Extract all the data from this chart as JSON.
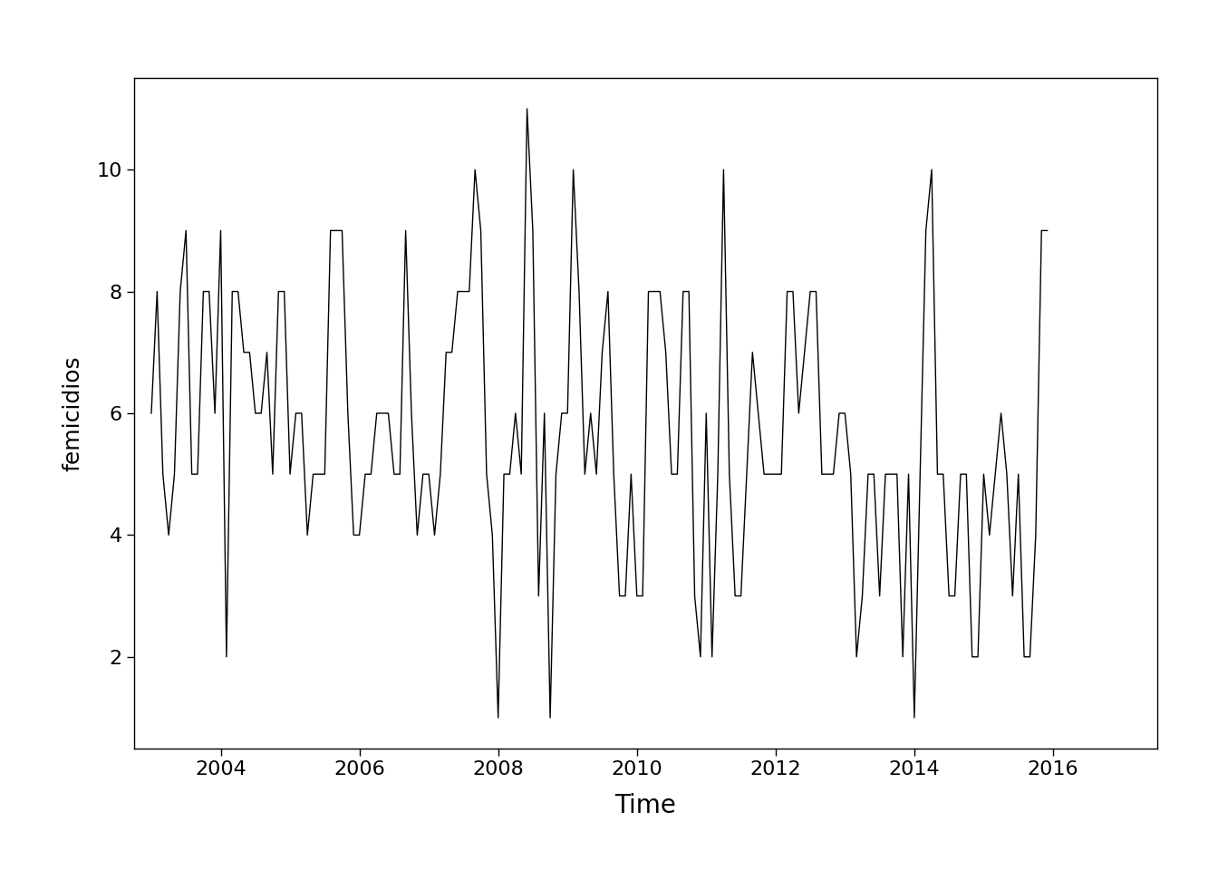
{
  "ylabel": "femicidios",
  "xlabel": "Time",
  "xticks": [
    2004,
    2006,
    2008,
    2010,
    2012,
    2014,
    2016
  ],
  "yticks": [
    2,
    4,
    6,
    8,
    10
  ],
  "ylim": [
    0.5,
    11.5
  ],
  "xlim_start": 2002.75,
  "xlim_end": 2017.5,
  "line_color": "black",
  "background_color": "white",
  "values": [
    6,
    8,
    5,
    4,
    5,
    8,
    9,
    5,
    5,
    8,
    8,
    6,
    9,
    2,
    8,
    8,
    7,
    7,
    6,
    6,
    7,
    5,
    8,
    8,
    5,
    6,
    6,
    4,
    5,
    5,
    5,
    9,
    9,
    9,
    6,
    4,
    4,
    5,
    5,
    6,
    6,
    6,
    5,
    5,
    9,
    6,
    4,
    5,
    5,
    4,
    5,
    7,
    7,
    8,
    8,
    8,
    10,
    9,
    5,
    4,
    1,
    5,
    5,
    6,
    5,
    11,
    9,
    3,
    6,
    1,
    5,
    6,
    6,
    10,
    8,
    5,
    6,
    5,
    7,
    8,
    5,
    3,
    3,
    5,
    3,
    3,
    8,
    8,
    8,
    7,
    5,
    5,
    8,
    8,
    3,
    2,
    6,
    2,
    5,
    10,
    5,
    3,
    3,
    5,
    7,
    6,
    5,
    5,
    5,
    5,
    8,
    8,
    6,
    7,
    8,
    8,
    5,
    5,
    5,
    6,
    6,
    5,
    2,
    3,
    5,
    5,
    3,
    5,
    5,
    5,
    2,
    5,
    1,
    5,
    9,
    10,
    5,
    5,
    3,
    3,
    5,
    5,
    2,
    2,
    5,
    4,
    5,
    6,
    5,
    3,
    5,
    2,
    2,
    4,
    9,
    9
  ],
  "start_year": 2003,
  "start_month": 1,
  "freq": 12
}
